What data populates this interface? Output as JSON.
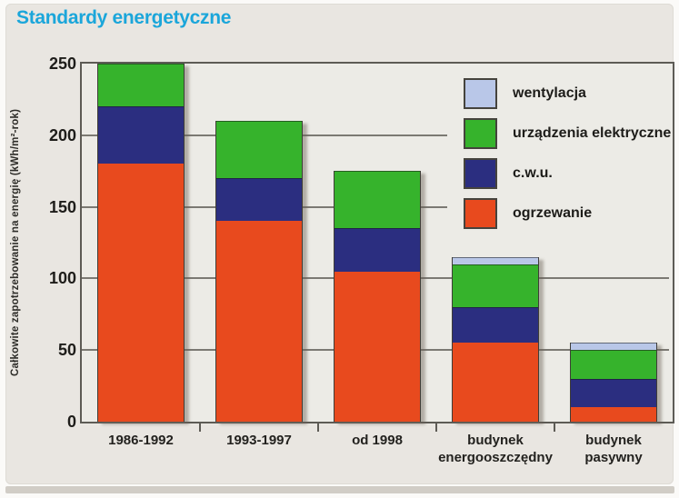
{
  "page": {
    "background": "#fbfaf8",
    "card_background": "#e9e6e1",
    "title_color": "#1ba6da",
    "frame_color": "#5d5b55",
    "gridline_color": "#7b7973",
    "bottom_strip_color": "#d1cdc6"
  },
  "chart_data": {
    "type": "bar",
    "stacked": true,
    "title": "Standardy energetyczne",
    "xlabel": "",
    "ylabel": "Całkowite zapotrzebowanie na energię (kWh/m²-rok)",
    "ylim": [
      0,
      250
    ],
    "yticks": [
      0,
      50,
      100,
      150,
      200,
      250
    ],
    "grid": true,
    "categories": [
      "1986-1992",
      "1993-1997",
      "od 1998",
      "budynek energooszczędny",
      "budynek pasywny"
    ],
    "category_labels": [
      [
        "1986-1992"
      ],
      [
        "1993-1997"
      ],
      [
        "od 1998"
      ],
      [
        "budynek",
        "energooszczędny"
      ],
      [
        "budynek",
        "pasywny"
      ]
    ],
    "series": [
      {
        "name": "ogrzewanie",
        "color": "#e84a1e",
        "values": [
          180,
          140,
          105,
          55,
          10
        ]
      },
      {
        "name": "c.w.u.",
        "color": "#2b2e80",
        "values": [
          40,
          30,
          30,
          25,
          20
        ]
      },
      {
        "name": "urządzenia elektryczne",
        "color": "#36b32c",
        "values": [
          30,
          40,
          40,
          30,
          20
        ]
      },
      {
        "name": "wentylacja",
        "color": "#b9c7e8",
        "values": [
          0,
          0,
          0,
          5,
          5
        ]
      }
    ],
    "totals": [
      250,
      210,
      175,
      115,
      55
    ],
    "legend": {
      "position": "top-right",
      "order": [
        "wentylacja",
        "urządzenia elektryczne",
        "c.w.u.",
        "ogrzewanie"
      ]
    }
  }
}
